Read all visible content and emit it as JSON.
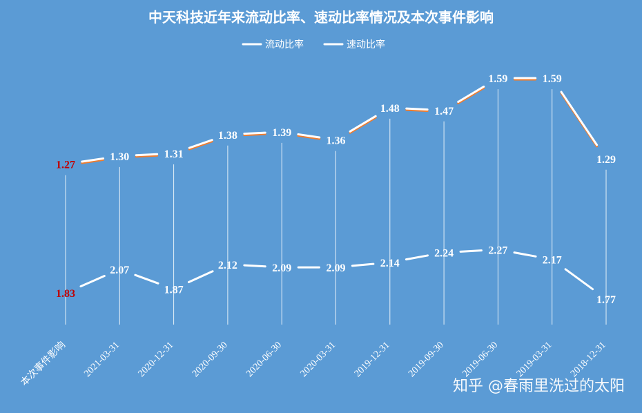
{
  "chart_data": {
    "type": "line",
    "title": "中天科技近年来流动比率、速动比率情况及本次事件影响",
    "categories": [
      "本次事件影响",
      "2021-03-31",
      "2020-12-31",
      "2020-09-30",
      "2020-06-30",
      "2020-03-31",
      "2019-12-31",
      "2019-09-30",
      "2019-06-30",
      "2019-03-31",
      "2018-12-31"
    ],
    "series": [
      {
        "name": "流动比率",
        "values": [
          1.83,
          2.07,
          1.87,
          2.12,
          2.09,
          2.09,
          2.14,
          2.24,
          2.27,
          2.17,
          1.77
        ],
        "labels": [
          "1.83",
          "2.07",
          "1.87",
          "2.12",
          "2.09",
          "2.09",
          "2.14",
          "2.24",
          "2.27",
          "2.17",
          "1.77"
        ],
        "color": "#ffffff"
      },
      {
        "name": "速动比率",
        "values": [
          1.27,
          1.3,
          1.31,
          1.38,
          1.39,
          1.36,
          1.48,
          1.47,
          1.59,
          1.59,
          1.29
        ],
        "labels": [
          "1.27",
          "1.30",
          "1.31",
          "1.38",
          "1.39",
          "1.36",
          "1.48",
          "1.47",
          "1.59",
          "1.59",
          "1.29"
        ],
        "color": "#ffffff",
        "shadow_color": "#ed7d31"
      }
    ],
    "highlight_label_color": "#c00000",
    "legend_position": "top-center",
    "grid": false,
    "drop_lines": true,
    "background": "#5b9bd5"
  },
  "watermark": "知乎 @春雨里洗过的太阳"
}
